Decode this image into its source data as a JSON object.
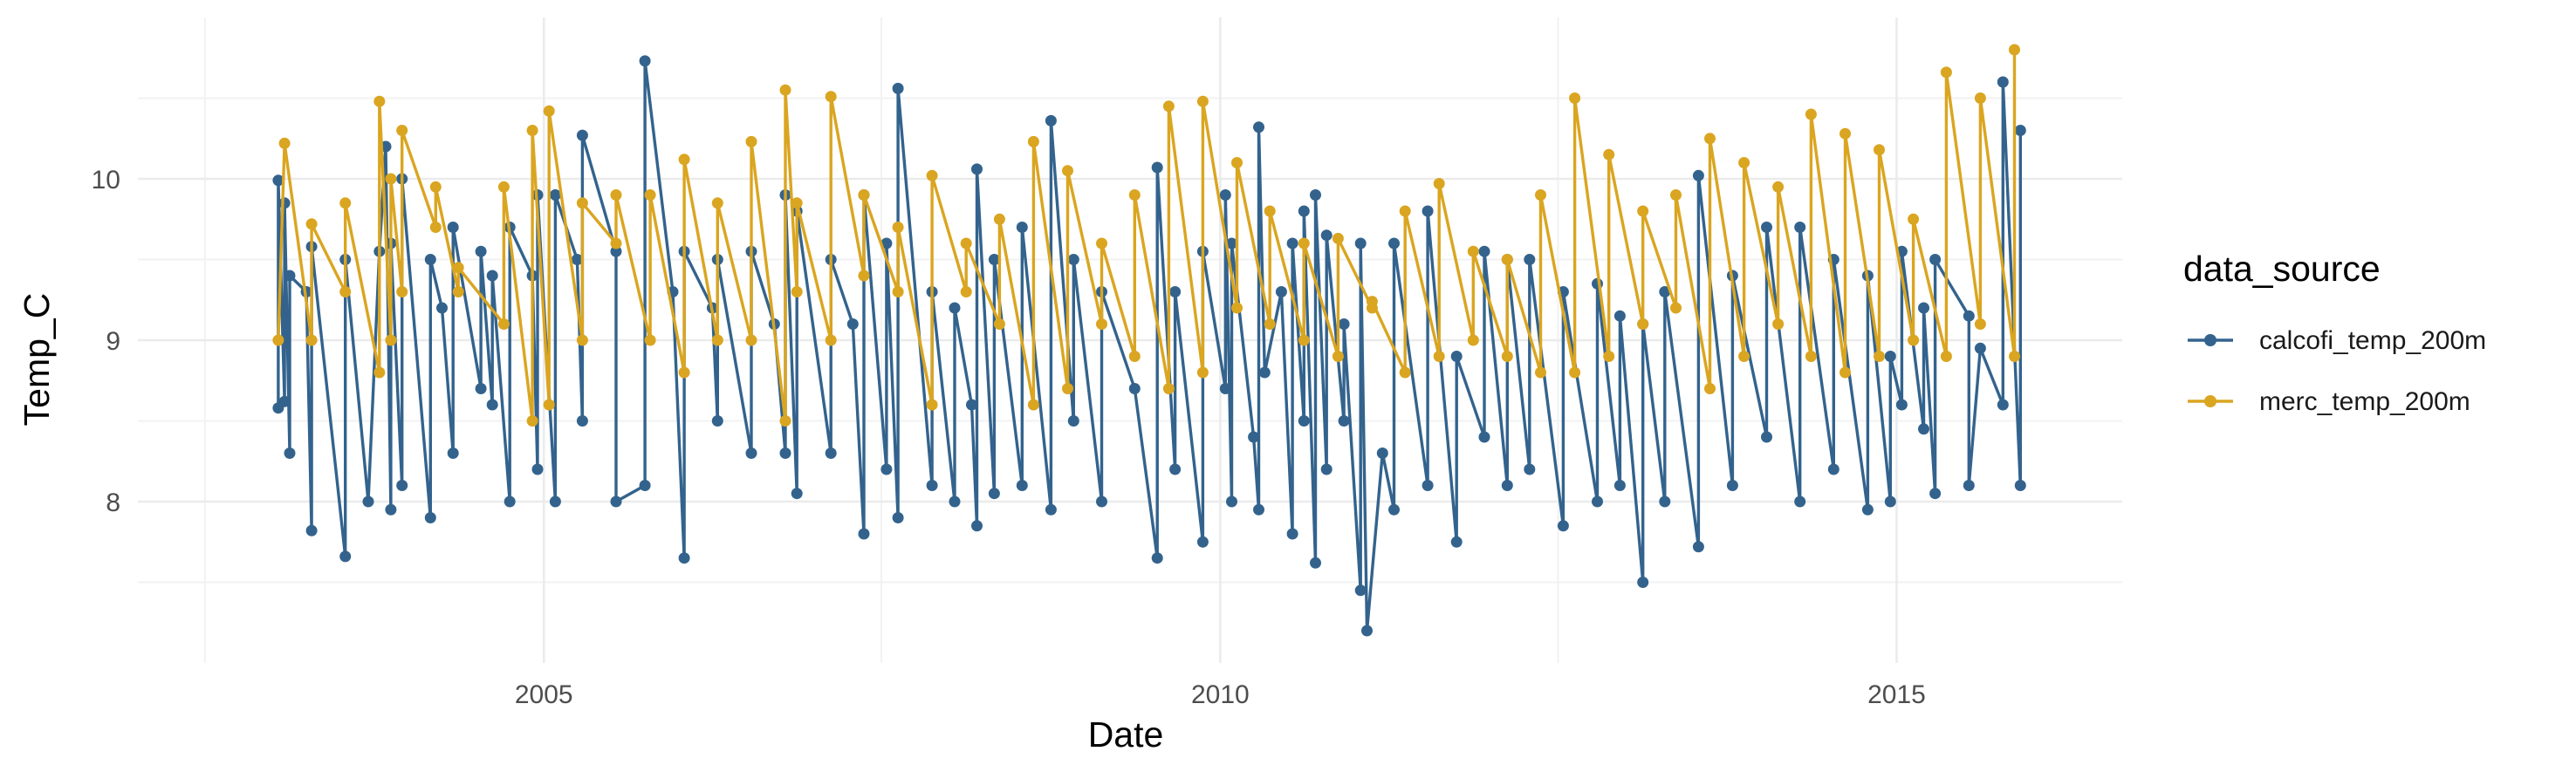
{
  "chart_data": {
    "type": "line",
    "title": "",
    "xlabel": "Date",
    "ylabel": "Temp_C",
    "x_type": "date",
    "xlim": [
      "2002-01-01",
      "2016-09-01"
    ],
    "ylim": [
      7.0,
      11.0
    ],
    "x_ticks": [
      "2005-01-01",
      "2010-01-01",
      "2015-01-01"
    ],
    "x_tick_labels": [
      "2005",
      "2010",
      "2015"
    ],
    "y_ticks": [
      8,
      9,
      10
    ],
    "y_tick_labels": [
      "8",
      "9",
      "10"
    ],
    "grid": true,
    "markers": true,
    "legend": {
      "title": "data_source",
      "position": "right",
      "entries": [
        "calcofi_temp_200m",
        "merc_temp_200m"
      ]
    },
    "series": [
      {
        "name": "calcofi_temp_200m",
        "color": "#33638D",
        "points": [
          [
            "2003-01-15",
            8.58
          ],
          [
            "2003-01-15",
            9.99
          ],
          [
            "2003-02-01",
            8.62
          ],
          [
            "2003-02-01",
            9.85
          ],
          [
            "2003-02-15",
            8.3
          ],
          [
            "2003-02-15",
            9.4
          ],
          [
            "2003-04-01",
            9.3
          ],
          [
            "2003-04-15",
            7.82
          ],
          [
            "2003-04-15",
            9.58
          ],
          [
            "2003-07-15",
            7.66
          ],
          [
            "2003-07-15",
            9.5
          ],
          [
            "2003-09-15",
            8.0
          ],
          [
            "2003-10-15",
            9.55
          ],
          [
            "2003-11-01",
            10.2
          ],
          [
            "2003-11-15",
            7.95
          ],
          [
            "2003-11-15",
            9.6
          ],
          [
            "2003-12-15",
            8.1
          ],
          [
            "2003-12-15",
            10.0
          ],
          [
            "2004-03-01",
            7.9
          ],
          [
            "2004-03-01",
            9.5
          ],
          [
            "2004-04-01",
            9.2
          ],
          [
            "2004-05-01",
            8.3
          ],
          [
            "2004-05-01",
            9.7
          ],
          [
            "2004-07-15",
            8.7
          ],
          [
            "2004-07-15",
            9.55
          ],
          [
            "2004-08-15",
            8.6
          ],
          [
            "2004-08-15",
            9.4
          ],
          [
            "2004-10-01",
            8.0
          ],
          [
            "2004-10-01",
            9.7
          ],
          [
            "2004-12-01",
            9.4
          ],
          [
            "2004-12-15",
            8.2
          ],
          [
            "2004-12-15",
            9.9
          ],
          [
            "2005-02-01",
            8.0
          ],
          [
            "2005-02-01",
            9.9
          ],
          [
            "2005-04-01",
            9.5
          ],
          [
            "2005-04-15",
            8.5
          ],
          [
            "2005-04-15",
            10.27
          ],
          [
            "2005-07-15",
            9.55
          ],
          [
            "2005-07-15",
            8.0
          ],
          [
            "2005-10-01",
            8.1
          ],
          [
            "2005-10-01",
            10.73
          ],
          [
            "2005-12-15",
            9.3
          ],
          [
            "2006-01-15",
            7.65
          ],
          [
            "2006-01-15",
            9.55
          ],
          [
            "2006-04-01",
            9.2
          ],
          [
            "2006-04-15",
            8.5
          ],
          [
            "2006-04-15",
            9.5
          ],
          [
            "2006-07-15",
            8.3
          ],
          [
            "2006-07-15",
            9.55
          ],
          [
            "2006-09-15",
            9.1
          ],
          [
            "2006-10-15",
            8.3
          ],
          [
            "2006-10-15",
            9.9
          ],
          [
            "2006-11-15",
            8.05
          ],
          [
            "2006-11-15",
            9.8
          ],
          [
            "2007-02-15",
            8.3
          ],
          [
            "2007-02-15",
            9.5
          ],
          [
            "2007-04-15",
            9.1
          ],
          [
            "2007-05-15",
            7.8
          ],
          [
            "2007-05-15",
            9.9
          ],
          [
            "2007-07-15",
            8.2
          ],
          [
            "2007-07-15",
            9.6
          ],
          [
            "2007-08-15",
            7.9
          ],
          [
            "2007-08-15",
            10.56
          ],
          [
            "2007-11-15",
            8.1
          ],
          [
            "2007-11-15",
            9.3
          ],
          [
            "2008-01-15",
            8.0
          ],
          [
            "2008-01-15",
            9.2
          ],
          [
            "2008-03-01",
            8.6
          ],
          [
            "2008-03-15",
            7.85
          ],
          [
            "2008-03-15",
            10.06
          ],
          [
            "2008-05-01",
            8.05
          ],
          [
            "2008-05-01",
            9.5
          ],
          [
            "2008-07-15",
            8.1
          ],
          [
            "2008-07-15",
            9.7
          ],
          [
            "2008-10-01",
            7.95
          ],
          [
            "2008-10-01",
            10.36
          ],
          [
            "2008-12-01",
            8.5
          ],
          [
            "2008-12-01",
            9.5
          ],
          [
            "2009-02-15",
            8.0
          ],
          [
            "2009-02-15",
            9.3
          ],
          [
            "2009-05-15",
            8.7
          ],
          [
            "2009-07-15",
            7.65
          ],
          [
            "2009-07-15",
            10.07
          ],
          [
            "2009-09-01",
            8.2
          ],
          [
            "2009-09-01",
            9.3
          ],
          [
            "2009-11-15",
            7.75
          ],
          [
            "2009-11-15",
            9.55
          ],
          [
            "2010-01-15",
            8.7
          ],
          [
            "2010-01-15",
            9.9
          ],
          [
            "2010-02-01",
            8.0
          ],
          [
            "2010-02-01",
            9.6
          ],
          [
            "2010-04-01",
            8.4
          ],
          [
            "2010-04-15",
            7.95
          ],
          [
            "2010-04-15",
            10.32
          ],
          [
            "2010-05-01",
            8.8
          ],
          [
            "2010-06-15",
            9.3
          ],
          [
            "2010-07-15",
            7.8
          ],
          [
            "2010-07-15",
            9.6
          ],
          [
            "2010-08-15",
            8.5
          ],
          [
            "2010-08-15",
            9.8
          ],
          [
            "2010-09-15",
            7.62
          ],
          [
            "2010-09-15",
            9.9
          ],
          [
            "2010-10-15",
            8.2
          ],
          [
            "2010-10-15",
            9.65
          ],
          [
            "2010-12-01",
            8.5
          ],
          [
            "2010-12-01",
            9.1
          ],
          [
            "2011-01-15",
            7.45
          ],
          [
            "2011-01-15",
            9.6
          ],
          [
            "2011-02-01",
            7.2
          ],
          [
            "2011-03-15",
            8.3
          ],
          [
            "2011-04-15",
            7.95
          ],
          [
            "2011-04-15",
            9.6
          ],
          [
            "2011-07-15",
            8.1
          ],
          [
            "2011-07-15",
            9.8
          ],
          [
            "2011-10-01",
            7.75
          ],
          [
            "2011-10-01",
            8.9
          ],
          [
            "2011-12-15",
            8.4
          ],
          [
            "2011-12-15",
            9.55
          ],
          [
            "2012-02-15",
            8.1
          ],
          [
            "2012-02-15",
            9.5
          ],
          [
            "2012-04-15",
            8.2
          ],
          [
            "2012-04-15",
            9.5
          ],
          [
            "2012-07-15",
            7.85
          ],
          [
            "2012-07-15",
            9.3
          ],
          [
            "2012-10-15",
            8.0
          ],
          [
            "2012-10-15",
            9.35
          ],
          [
            "2012-12-15",
            8.1
          ],
          [
            "2012-12-15",
            9.15
          ],
          [
            "2013-02-15",
            7.5
          ],
          [
            "2013-02-15",
            9.1
          ],
          [
            "2013-04-15",
            8.0
          ],
          [
            "2013-04-15",
            9.3
          ],
          [
            "2013-07-15",
            7.72
          ],
          [
            "2013-07-15",
            10.02
          ],
          [
            "2013-10-15",
            8.1
          ],
          [
            "2013-10-15",
            9.4
          ],
          [
            "2014-01-15",
            8.4
          ],
          [
            "2014-01-15",
            9.7
          ],
          [
            "2014-04-15",
            8.0
          ],
          [
            "2014-04-15",
            9.7
          ],
          [
            "2014-07-15",
            8.2
          ],
          [
            "2014-07-15",
            9.5
          ],
          [
            "2014-10-15",
            7.95
          ],
          [
            "2014-10-15",
            9.4
          ],
          [
            "2014-12-15",
            8.0
          ],
          [
            "2014-12-15",
            8.9
          ],
          [
            "2015-01-15",
            8.6
          ],
          [
            "2015-01-15",
            9.55
          ],
          [
            "2015-03-15",
            8.45
          ],
          [
            "2015-03-15",
            9.2
          ],
          [
            "2015-04-15",
            8.05
          ],
          [
            "2015-04-15",
            9.5
          ],
          [
            "2015-07-15",
            9.15
          ],
          [
            "2015-07-15",
            8.1
          ],
          [
            "2015-08-15",
            8.95
          ],
          [
            "2015-10-15",
            8.6
          ],
          [
            "2015-10-15",
            10.6
          ],
          [
            "2015-12-01",
            8.1
          ],
          [
            "2015-12-01",
            10.3
          ]
        ]
      },
      {
        "name": "merc_temp_200m",
        "color": "#DAA520",
        "points": [
          [
            "2003-01-15",
            9.0
          ],
          [
            "2003-02-01",
            10.22
          ],
          [
            "2003-04-15",
            9.0
          ],
          [
            "2003-04-15",
            9.72
          ],
          [
            "2003-07-15",
            9.3
          ],
          [
            "2003-07-15",
            9.85
          ],
          [
            "2003-10-15",
            8.8
          ],
          [
            "2003-10-15",
            10.48
          ],
          [
            "2003-11-15",
            9.0
          ],
          [
            "2003-11-15",
            10.0
          ],
          [
            "2003-12-15",
            9.3
          ],
          [
            "2003-12-15",
            10.3
          ],
          [
            "2004-03-15",
            9.7
          ],
          [
            "2004-03-15",
            9.95
          ],
          [
            "2004-05-15",
            9.3
          ],
          [
            "2004-05-15",
            9.45
          ],
          [
            "2004-09-15",
            9.1
          ],
          [
            "2004-09-15",
            9.95
          ],
          [
            "2004-12-01",
            8.5
          ],
          [
            "2004-12-01",
            10.3
          ],
          [
            "2005-01-15",
            8.6
          ],
          [
            "2005-01-15",
            10.42
          ],
          [
            "2005-04-15",
            9.0
          ],
          [
            "2005-04-15",
            9.85
          ],
          [
            "2005-07-15",
            9.6
          ],
          [
            "2005-07-15",
            9.9
          ],
          [
            "2005-10-15",
            9.0
          ],
          [
            "2005-10-15",
            9.9
          ],
          [
            "2006-01-15",
            8.8
          ],
          [
            "2006-01-15",
            10.12
          ],
          [
            "2006-04-15",
            9.0
          ],
          [
            "2006-04-15",
            9.85
          ],
          [
            "2006-07-15",
            9.0
          ],
          [
            "2006-07-15",
            10.23
          ],
          [
            "2006-10-15",
            8.5
          ],
          [
            "2006-10-15",
            10.55
          ],
          [
            "2006-11-15",
            9.3
          ],
          [
            "2006-11-15",
            9.85
          ],
          [
            "2007-02-15",
            9.0
          ],
          [
            "2007-02-15",
            10.51
          ],
          [
            "2007-05-15",
            9.4
          ],
          [
            "2007-05-15",
            9.9
          ],
          [
            "2007-08-15",
            9.3
          ],
          [
            "2007-08-15",
            9.7
          ],
          [
            "2007-11-15",
            8.6
          ],
          [
            "2007-11-15",
            10.02
          ],
          [
            "2008-02-15",
            9.3
          ],
          [
            "2008-02-15",
            9.6
          ],
          [
            "2008-05-15",
            9.1
          ],
          [
            "2008-05-15",
            9.75
          ],
          [
            "2008-08-15",
            8.6
          ],
          [
            "2008-08-15",
            10.23
          ],
          [
            "2008-11-15",
            8.7
          ],
          [
            "2008-11-15",
            10.05
          ],
          [
            "2009-02-15",
            9.1
          ],
          [
            "2009-02-15",
            9.6
          ],
          [
            "2009-05-15",
            8.9
          ],
          [
            "2009-05-15",
            9.9
          ],
          [
            "2009-08-15",
            8.7
          ],
          [
            "2009-08-15",
            10.45
          ],
          [
            "2009-11-15",
            8.8
          ],
          [
            "2009-11-15",
            10.48
          ],
          [
            "2010-02-15",
            9.2
          ],
          [
            "2010-02-15",
            10.1
          ],
          [
            "2010-05-15",
            9.1
          ],
          [
            "2010-05-15",
            9.8
          ],
          [
            "2010-08-15",
            9.0
          ],
          [
            "2010-08-15",
            9.6
          ],
          [
            "2010-11-15",
            8.9
          ],
          [
            "2010-11-15",
            9.63
          ],
          [
            "2011-02-15",
            9.2
          ],
          [
            "2011-02-15",
            9.24
          ],
          [
            "2011-05-15",
            8.8
          ],
          [
            "2011-05-15",
            9.8
          ],
          [
            "2011-08-15",
            8.9
          ],
          [
            "2011-08-15",
            9.97
          ],
          [
            "2011-11-15",
            9.0
          ],
          [
            "2011-11-15",
            9.55
          ],
          [
            "2012-02-15",
            8.9
          ],
          [
            "2012-02-15",
            9.5
          ],
          [
            "2012-05-15",
            8.8
          ],
          [
            "2012-05-15",
            9.9
          ],
          [
            "2012-08-15",
            8.8
          ],
          [
            "2012-08-15",
            10.5
          ],
          [
            "2012-11-15",
            8.9
          ],
          [
            "2012-11-15",
            10.15
          ],
          [
            "2013-02-15",
            9.1
          ],
          [
            "2013-02-15",
            9.8
          ],
          [
            "2013-05-15",
            9.2
          ],
          [
            "2013-05-15",
            9.9
          ],
          [
            "2013-08-15",
            8.7
          ],
          [
            "2013-08-15",
            10.25
          ],
          [
            "2013-11-15",
            8.9
          ],
          [
            "2013-11-15",
            10.1
          ],
          [
            "2014-02-15",
            9.1
          ],
          [
            "2014-02-15",
            9.95
          ],
          [
            "2014-05-15",
            8.9
          ],
          [
            "2014-05-15",
            10.4
          ],
          [
            "2014-08-15",
            8.8
          ],
          [
            "2014-08-15",
            10.28
          ],
          [
            "2014-11-15",
            8.9
          ],
          [
            "2014-11-15",
            10.18
          ],
          [
            "2015-02-15",
            9.0
          ],
          [
            "2015-02-15",
            9.75
          ],
          [
            "2015-05-15",
            8.9
          ],
          [
            "2015-05-15",
            10.66
          ],
          [
            "2015-08-15",
            9.1
          ],
          [
            "2015-08-15",
            10.5
          ],
          [
            "2015-11-15",
            8.9
          ],
          [
            "2015-11-15",
            10.8
          ]
        ]
      }
    ]
  }
}
